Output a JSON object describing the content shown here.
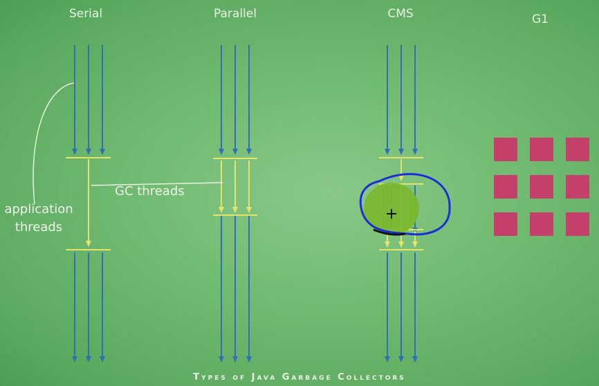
{
  "columns": [
    {
      "id": "serial",
      "title": "Serial"
    },
    {
      "id": "parallel",
      "title": "Parallel"
    },
    {
      "id": "cms",
      "title": "CMS"
    },
    {
      "id": "g1",
      "title": "G1"
    }
  ],
  "labels": {
    "application_threads_line1": "application",
    "application_threads_line2": "threads",
    "gc_threads": "GC threads"
  },
  "footer": "Types of Java Garbage Collectors",
  "colors": {
    "app_thread": "#2f6fb4",
    "gc_thread": "#e6e36a",
    "g1_region": "#c43f6a",
    "annotation_circle": "#1a2fd6",
    "highlight_blob": "#7ab830"
  },
  "annotation": {
    "cursor": "crosshair-icon"
  }
}
